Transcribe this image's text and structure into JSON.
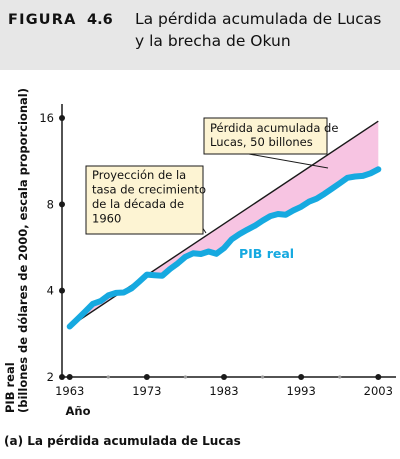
{
  "figure": {
    "label": "FIGURA",
    "number": "4.6",
    "title_lines": [
      "La pérdida acumulada de Lucas",
      "y la brecha de Okun"
    ],
    "panel_caption": "(a) La pérdida acumulada de Lucas"
  },
  "colors": {
    "header_bg": "#e7e7e7",
    "real_gdp_line": "#16a9e0",
    "trend_line": "#1a1a1a",
    "loss_fill": "#f7c4e2",
    "annotation_bg": "#fdf4d3",
    "axis": "#1a1a1a"
  },
  "chart_data": {
    "type": "line",
    "y_scale": "log",
    "ylabel_lines": [
      "PIB real",
      "(billones de dólares de 2000, escala proporcional)"
    ],
    "xlabel": "Año",
    "x_range": [
      1962,
      2004
    ],
    "y_range": [
      2,
      16
    ],
    "y_ticks": [
      2,
      4,
      8,
      16
    ],
    "x_ticks": [
      1963,
      1973,
      1983,
      1993,
      2003
    ],
    "x_minor_ticks": [
      1968,
      1978,
      1988,
      1998
    ],
    "series": [
      {
        "name": "PIB real",
        "x": [
          1963,
          1964,
          1965,
          1966,
          1967,
          1968,
          1969,
          1970,
          1971,
          1972,
          1973,
          1974,
          1975,
          1976,
          1977,
          1978,
          1979,
          1980,
          1981,
          1982,
          1983,
          1984,
          1985,
          1986,
          1987,
          1988,
          1989,
          1990,
          1991,
          1992,
          1993,
          1994,
          1995,
          1996,
          1997,
          1998,
          1999,
          2000,
          2001,
          2002,
          2003
        ],
        "y": [
          3.0,
          3.18,
          3.38,
          3.6,
          3.68,
          3.85,
          3.93,
          3.94,
          4.07,
          4.3,
          4.55,
          4.53,
          4.51,
          4.76,
          4.98,
          5.25,
          5.4,
          5.37,
          5.48,
          5.38,
          5.63,
          6.04,
          6.3,
          6.52,
          6.74,
          7.02,
          7.28,
          7.4,
          7.36,
          7.62,
          7.84,
          8.17,
          8.37,
          8.7,
          9.08,
          9.47,
          9.9,
          10.0,
          10.05,
          10.26,
          10.6
        ]
      },
      {
        "name": "Proyección de la tasa de crecimiento de la década de 1960",
        "x": [
          1963,
          2003
        ],
        "y": [
          3.0,
          15.6
        ]
      }
    ],
    "annotations": [
      {
        "lines": [
          "Pérdida acumulada de",
          "Lucas, 50 billones"
        ]
      },
      {
        "lines": [
          "Proyección de la",
          "tasa de crecimiento",
          "de la década de",
          "1960"
        ]
      },
      {
        "text": "PIB real"
      }
    ]
  }
}
